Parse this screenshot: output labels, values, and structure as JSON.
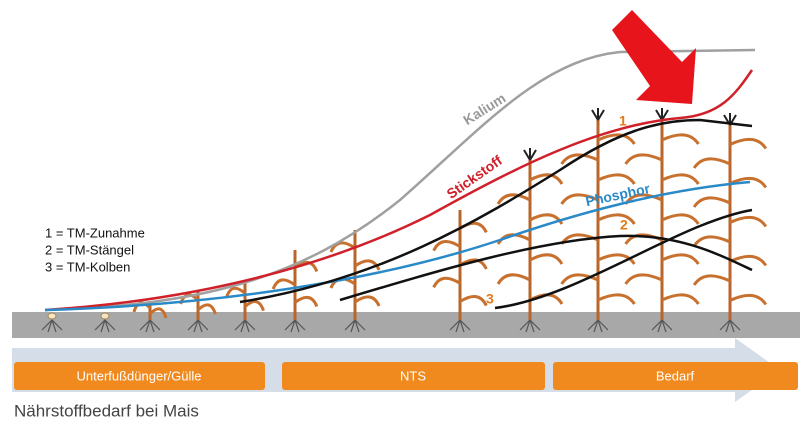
{
  "curve_labels": {
    "kalium": "Kalium",
    "stickstoff": "Stickstoff",
    "phosphor": "Phosphor"
  },
  "curve_numbers": [
    "1",
    "2",
    "3"
  ],
  "legend": [
    "1 = TM-Zunahme",
    "2 = TM-Stängel",
    "3 = TM-Kolben"
  ],
  "phases": [
    "Unterfußdünger/Gülle",
    "NTS",
    "Bedarf"
  ],
  "caption": "Nährstoffbedarf bei Mais"
}
